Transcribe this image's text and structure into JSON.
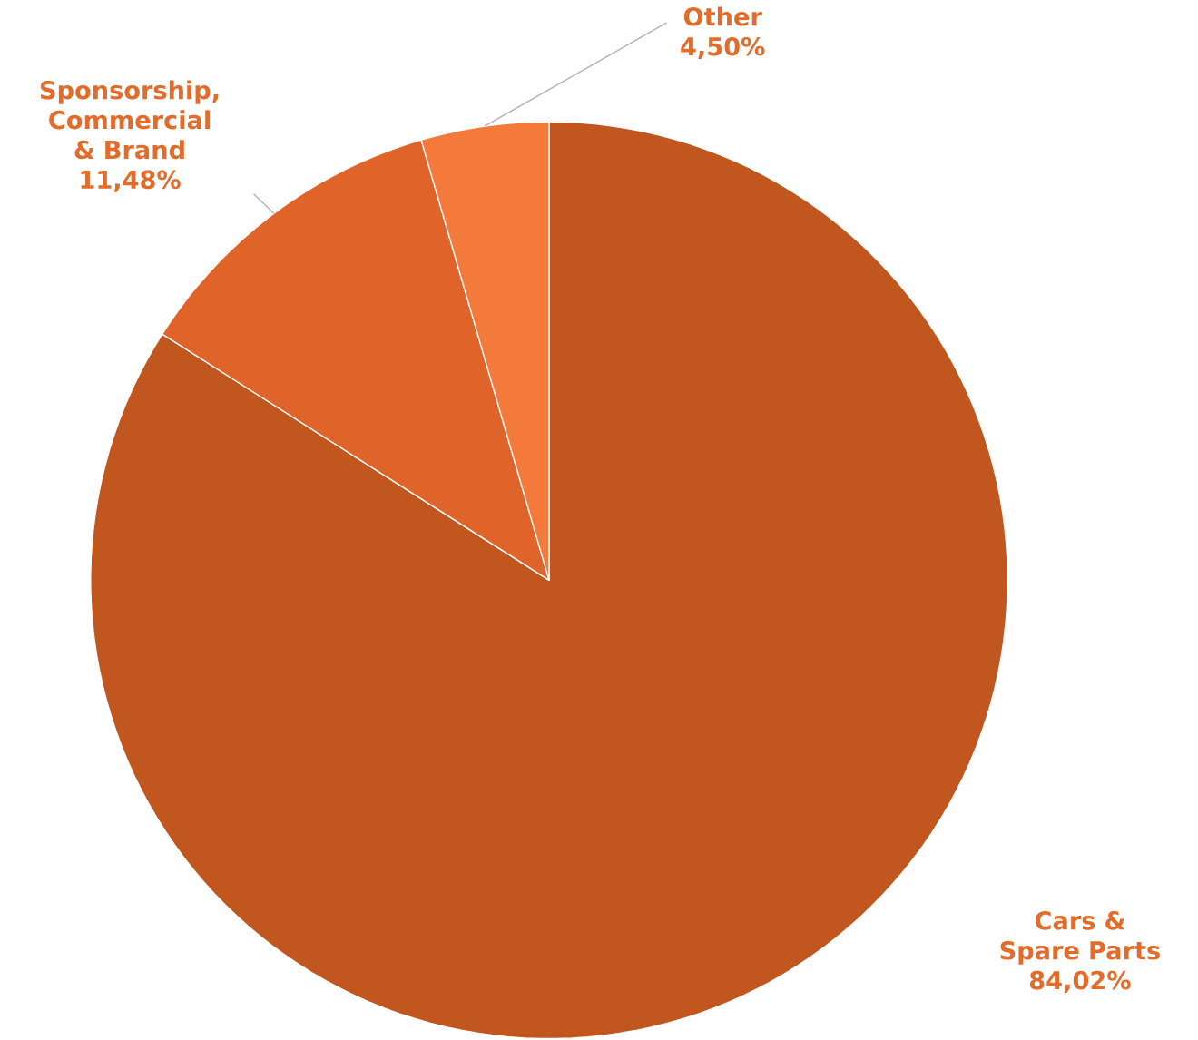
{
  "chart_data": {
    "type": "pie",
    "categories": [
      "Cars & Spare Parts",
      "Sponsorship, Commercial & Brand",
      "Other"
    ],
    "values": [
      84.02,
      11.48,
      4.5
    ],
    "value_labels": [
      "84,02%",
      "11,48%",
      "4,50%"
    ],
    "colors": [
      "#c2561f",
      "#e0632a",
      "#f37a3a"
    ]
  }
}
